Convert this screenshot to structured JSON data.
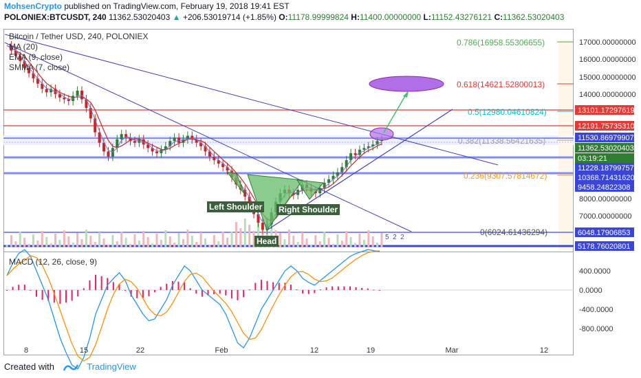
{
  "header": {
    "author": "MohsenCrypto",
    "published": "published on TradingView.com, February 19, 2018 19:41 EST",
    "symbol": "POLONIEX:BTCUSDT, 240",
    "last": "11362.53020403",
    "change": "+206.53019714 (+1.85%)",
    "o_label": "O:",
    "o_value": "11178.99999824",
    "h_label": "H:",
    "h_value": "11400.00000000",
    "l_label": "L:",
    "l_value": "11152.43276121",
    "c_label": "C:",
    "c_value": "11362.53020403"
  },
  "legend": {
    "title": "Bitcoin / Tether USD, 240, POLONIEX",
    "ind1": "MA (20)",
    "ind2": "EMA (9, close)",
    "ind3": "SMMA (7, close)",
    "macd": "MACD (12, 26, close, 9)"
  },
  "footer": {
    "created": "Created with",
    "brand": "TradingView"
  },
  "annotations": {
    "left_shoulder": "Left Shoulder",
    "head": "Head",
    "right_shoulder": "Right Shoulder",
    "fib": [
      {
        "label": "0.786(16958.55306655)",
        "color": "#4caf50"
      },
      {
        "label": "0.618(14621.52800013)",
        "color": "#e53935"
      },
      {
        "label": "0.5(12980.04610824)",
        "color": "#00bcd4"
      },
      {
        "label": "0.382(11338.56421635)",
        "color": "#9e9e9e"
      },
      {
        "label": "0.236(9307.57814672)",
        "color": "#ff9800"
      },
      {
        "label": "0(6024.61436294)",
        "color": "#555555"
      }
    ],
    "badges": [
      "5",
      "2",
      "2"
    ]
  },
  "colors": {
    "up": "#2e7d32",
    "down": "#c62828",
    "trend": "#3f3fbf",
    "hline": "#e53935",
    "support": "#7f8cff",
    "pattern": "#43a047",
    "target": "#b06fe6",
    "ma": "#c62828",
    "ema": "#7a6fcf",
    "smma": "#ff9800",
    "macd": "#2196f3",
    "signal": "#ff8f00",
    "hist": "#e91e63"
  },
  "chart_data": {
    "type": "line",
    "title": "Bitcoin / Tether USD, 240, POLONIEX",
    "x_ticks": [
      "8",
      "15",
      "22",
      "Feb",
      "12",
      "19",
      "Mar",
      "12"
    ],
    "y_ticks": [
      "17000.00000000",
      "16000.00000000",
      "15000.00000000",
      "14000.00000000",
      "8000.00000000",
      "7000.00000000"
    ],
    "price_labels": [
      {
        "value": "13101.17297619",
        "bg": "#e53935"
      },
      {
        "value": "12191.75735310",
        "bg": "#e53935"
      },
      {
        "value": "11530.86979907",
        "bg": "#3b45d6"
      },
      {
        "value": "11362.53020403",
        "bg": "#2e7d32"
      },
      {
        "value": "03:19:21",
        "bg": "#2e7d32"
      },
      {
        "value": "11228.18799757",
        "bg": "#3b45d6"
      },
      {
        "value": "10368.71431620",
        "bg": "#3b45d6"
      },
      {
        "value": "9458.24822308",
        "bg": "#3b45d6"
      },
      {
        "value": "6048.17906853",
        "bg": "#3b45d6"
      },
      {
        "value": "5178.76020801",
        "bg": "#3b45d6"
      }
    ],
    "macd_ticks": [
      "400.0000",
      "0.0000",
      "-400.0000",
      "-800.0000"
    ],
    "price_series": [
      16800,
      16500,
      16200,
      15900,
      15500,
      15200,
      14900,
      14600,
      14300,
      14100,
      14300,
      14000,
      13800,
      13700,
      13600,
      13900,
      14200,
      13700,
      13200,
      12600,
      11800,
      11200,
      10700,
      10400,
      10900,
      11400,
      11700,
      11500,
      11300,
      11200,
      11400,
      11100,
      10900,
      10700,
      10600,
      10800,
      11000,
      11300,
      11500,
      11200,
      11400,
      11600,
      11400,
      11200,
      11000,
      10700,
      10400,
      10200,
      10000,
      9800,
      9600,
      9200,
      8800,
      8500,
      8100,
      7600,
      7100,
      6600,
      6200,
      6500,
      7200,
      7800,
      8300,
      8500,
      8300,
      8200,
      8500,
      8800,
      8600,
      8400,
      8300,
      8600,
      8900,
      9100,
      9300,
      9500,
      9800,
      10200,
      10600,
      10500,
      10800,
      10900,
      11000,
      11100,
      11300,
      11362
    ],
    "macd_series": [
      150,
      280,
      380,
      420,
      350,
      200,
      50,
      -100,
      -300,
      -500,
      -650,
      -780,
      -820,
      -700,
      -500,
      -250,
      -100,
      50,
      120,
      180,
      100,
      -50,
      -150,
      -250,
      -320,
      -300,
      -200,
      -100,
      50,
      150,
      250,
      200,
      100,
      0,
      -50,
      -100,
      -150,
      -250,
      -400,
      -550,
      -600,
      -500,
      -350,
      -200,
      -100,
      0,
      100,
      200,
      250,
      200,
      120,
      80,
      50,
      100,
      150,
      200,
      250,
      300,
      350,
      380,
      400,
      420,
      410,
      400
    ]
  }
}
